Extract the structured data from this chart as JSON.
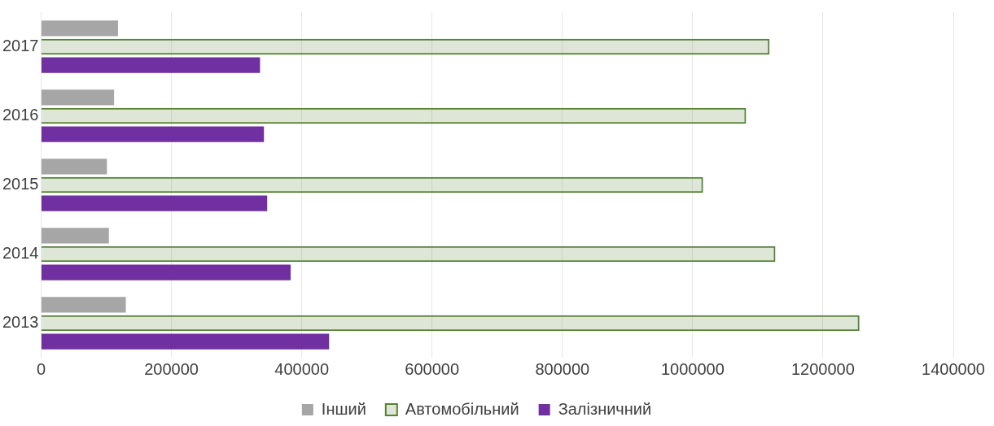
{
  "chart_data": {
    "type": "bar",
    "orientation": "horizontal",
    "categories": [
      "2017",
      "2016",
      "2015",
      "2014",
      "2013"
    ],
    "series": [
      {
        "name": "Інший",
        "color": "#a6a6a6",
        "values": [
          118000,
          112000,
          101000,
          104000,
          130000
        ]
      },
      {
        "name": "Автомобільний",
        "color": "#548235",
        "values": [
          1118000,
          1082000,
          1016000,
          1127000,
          1256000
        ]
      },
      {
        "name": "Залізничний",
        "color": "#7030a0",
        "values": [
          336000,
          342000,
          347000,
          383000,
          442000
        ]
      }
    ],
    "xlim": [
      0,
      1400000
    ],
    "xticks": [
      0,
      200000,
      400000,
      600000,
      800000,
      1000000,
      1200000,
      1400000
    ],
    "grid": "x",
    "legend": "bottom"
  }
}
